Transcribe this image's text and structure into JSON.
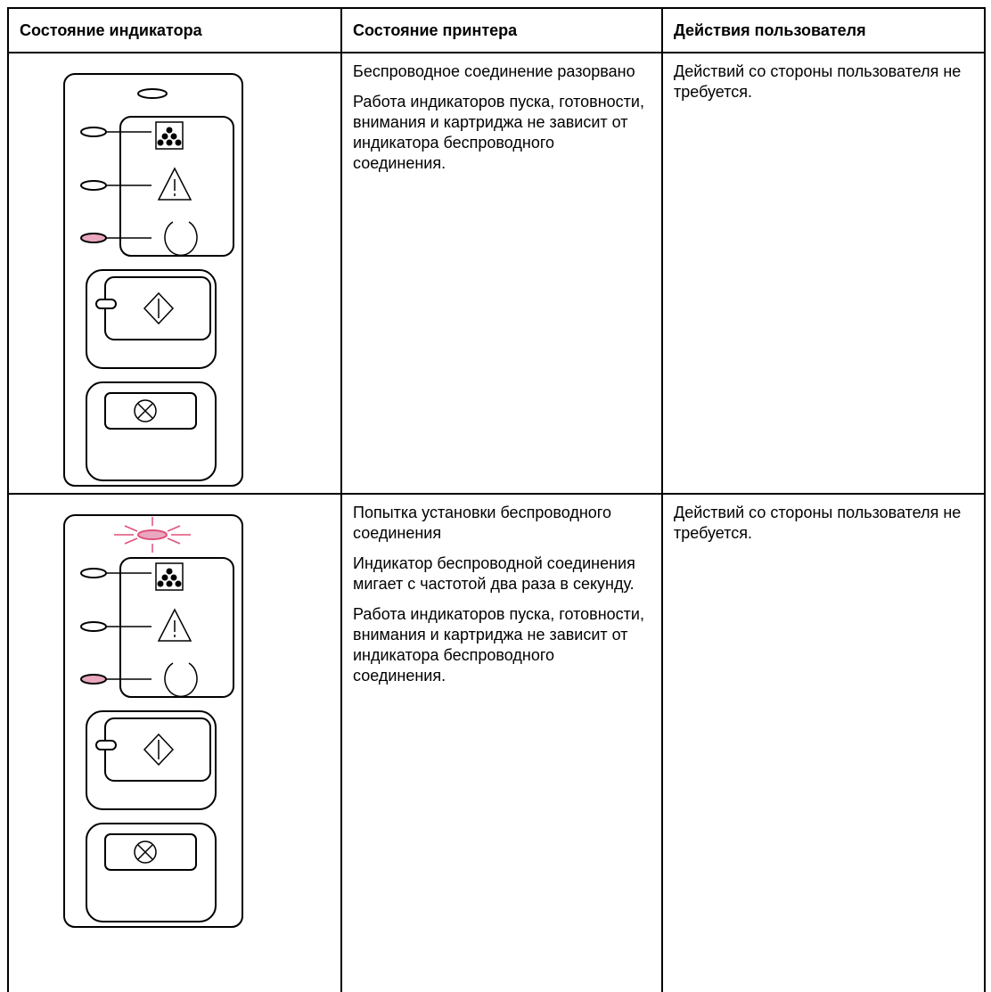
{
  "table": {
    "header": [
      "Состояние индикатора",
      "Состояние принтера",
      "Действия пользователя"
    ],
    "rows": [
      {
        "state": [
          "Беспроводное соединение разорвано",
          "Работа индикаторов пуска, готовности, внимания и картриджа не зависит от индикатора беспроводного соединения."
        ],
        "action": "Действий со стороны пользователя не требуется."
      },
      {
        "state": [
          "Попытка установки беспроводного соединения",
          "Индикатор беспроводной соединения мигает с частотой два раза в секунду.",
          "Работа индикаторов пуска, готовности, внимания и картриджа не зависит от индикатора беспроводного соединения."
        ],
        "action": "Действий со стороны пользователя не требуется."
      }
    ]
  }
}
